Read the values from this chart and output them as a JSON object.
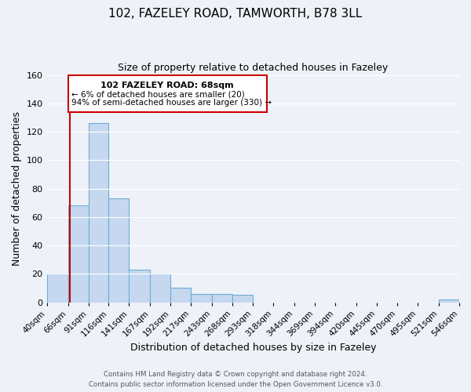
{
  "title_line1": "102, FAZELEY ROAD, TAMWORTH, B78 3LL",
  "title_line2": "Size of property relative to detached houses in Fazeley",
  "xlabel": "Distribution of detached houses by size in Fazeley",
  "ylabel": "Number of detached properties",
  "bar_edges": [
    40,
    66,
    91,
    116,
    141,
    167,
    192,
    217,
    243,
    268,
    293,
    318,
    344,
    369,
    394,
    420,
    445,
    470,
    495,
    521,
    546
  ],
  "bar_heights": [
    20,
    68,
    126,
    73,
    23,
    20,
    10,
    6,
    6,
    5,
    0,
    0,
    0,
    0,
    0,
    0,
    0,
    0,
    0,
    2
  ],
  "bar_color": "#c5d8f0",
  "bar_edge_color": "#6aacd6",
  "property_line_x": 68,
  "property_line_color": "#cc0000",
  "ylim": [
    0,
    160
  ],
  "yticks": [
    0,
    20,
    40,
    60,
    80,
    100,
    120,
    140,
    160
  ],
  "annotation_title": "102 FAZELEY ROAD: 68sqm",
  "annotation_line1": "← 6% of detached houses are smaller (20)",
  "annotation_line2": "94% of semi-detached houses are larger (330) →",
  "footnote1": "Contains HM Land Registry data © Crown copyright and database right 2024.",
  "footnote2": "Contains public sector information licensed under the Open Government Licence v3.0.",
  "background_color": "#eef2f8",
  "grid_color": "#ffffff",
  "tick_labels": [
    "40sqm",
    "66sqm",
    "91sqm",
    "116sqm",
    "141sqm",
    "167sqm",
    "192sqm",
    "217sqm",
    "243sqm",
    "268sqm",
    "293sqm",
    "318sqm",
    "344sqm",
    "369sqm",
    "394sqm",
    "420sqm",
    "445sqm",
    "470sqm",
    "495sqm",
    "521sqm",
    "546sqm"
  ]
}
